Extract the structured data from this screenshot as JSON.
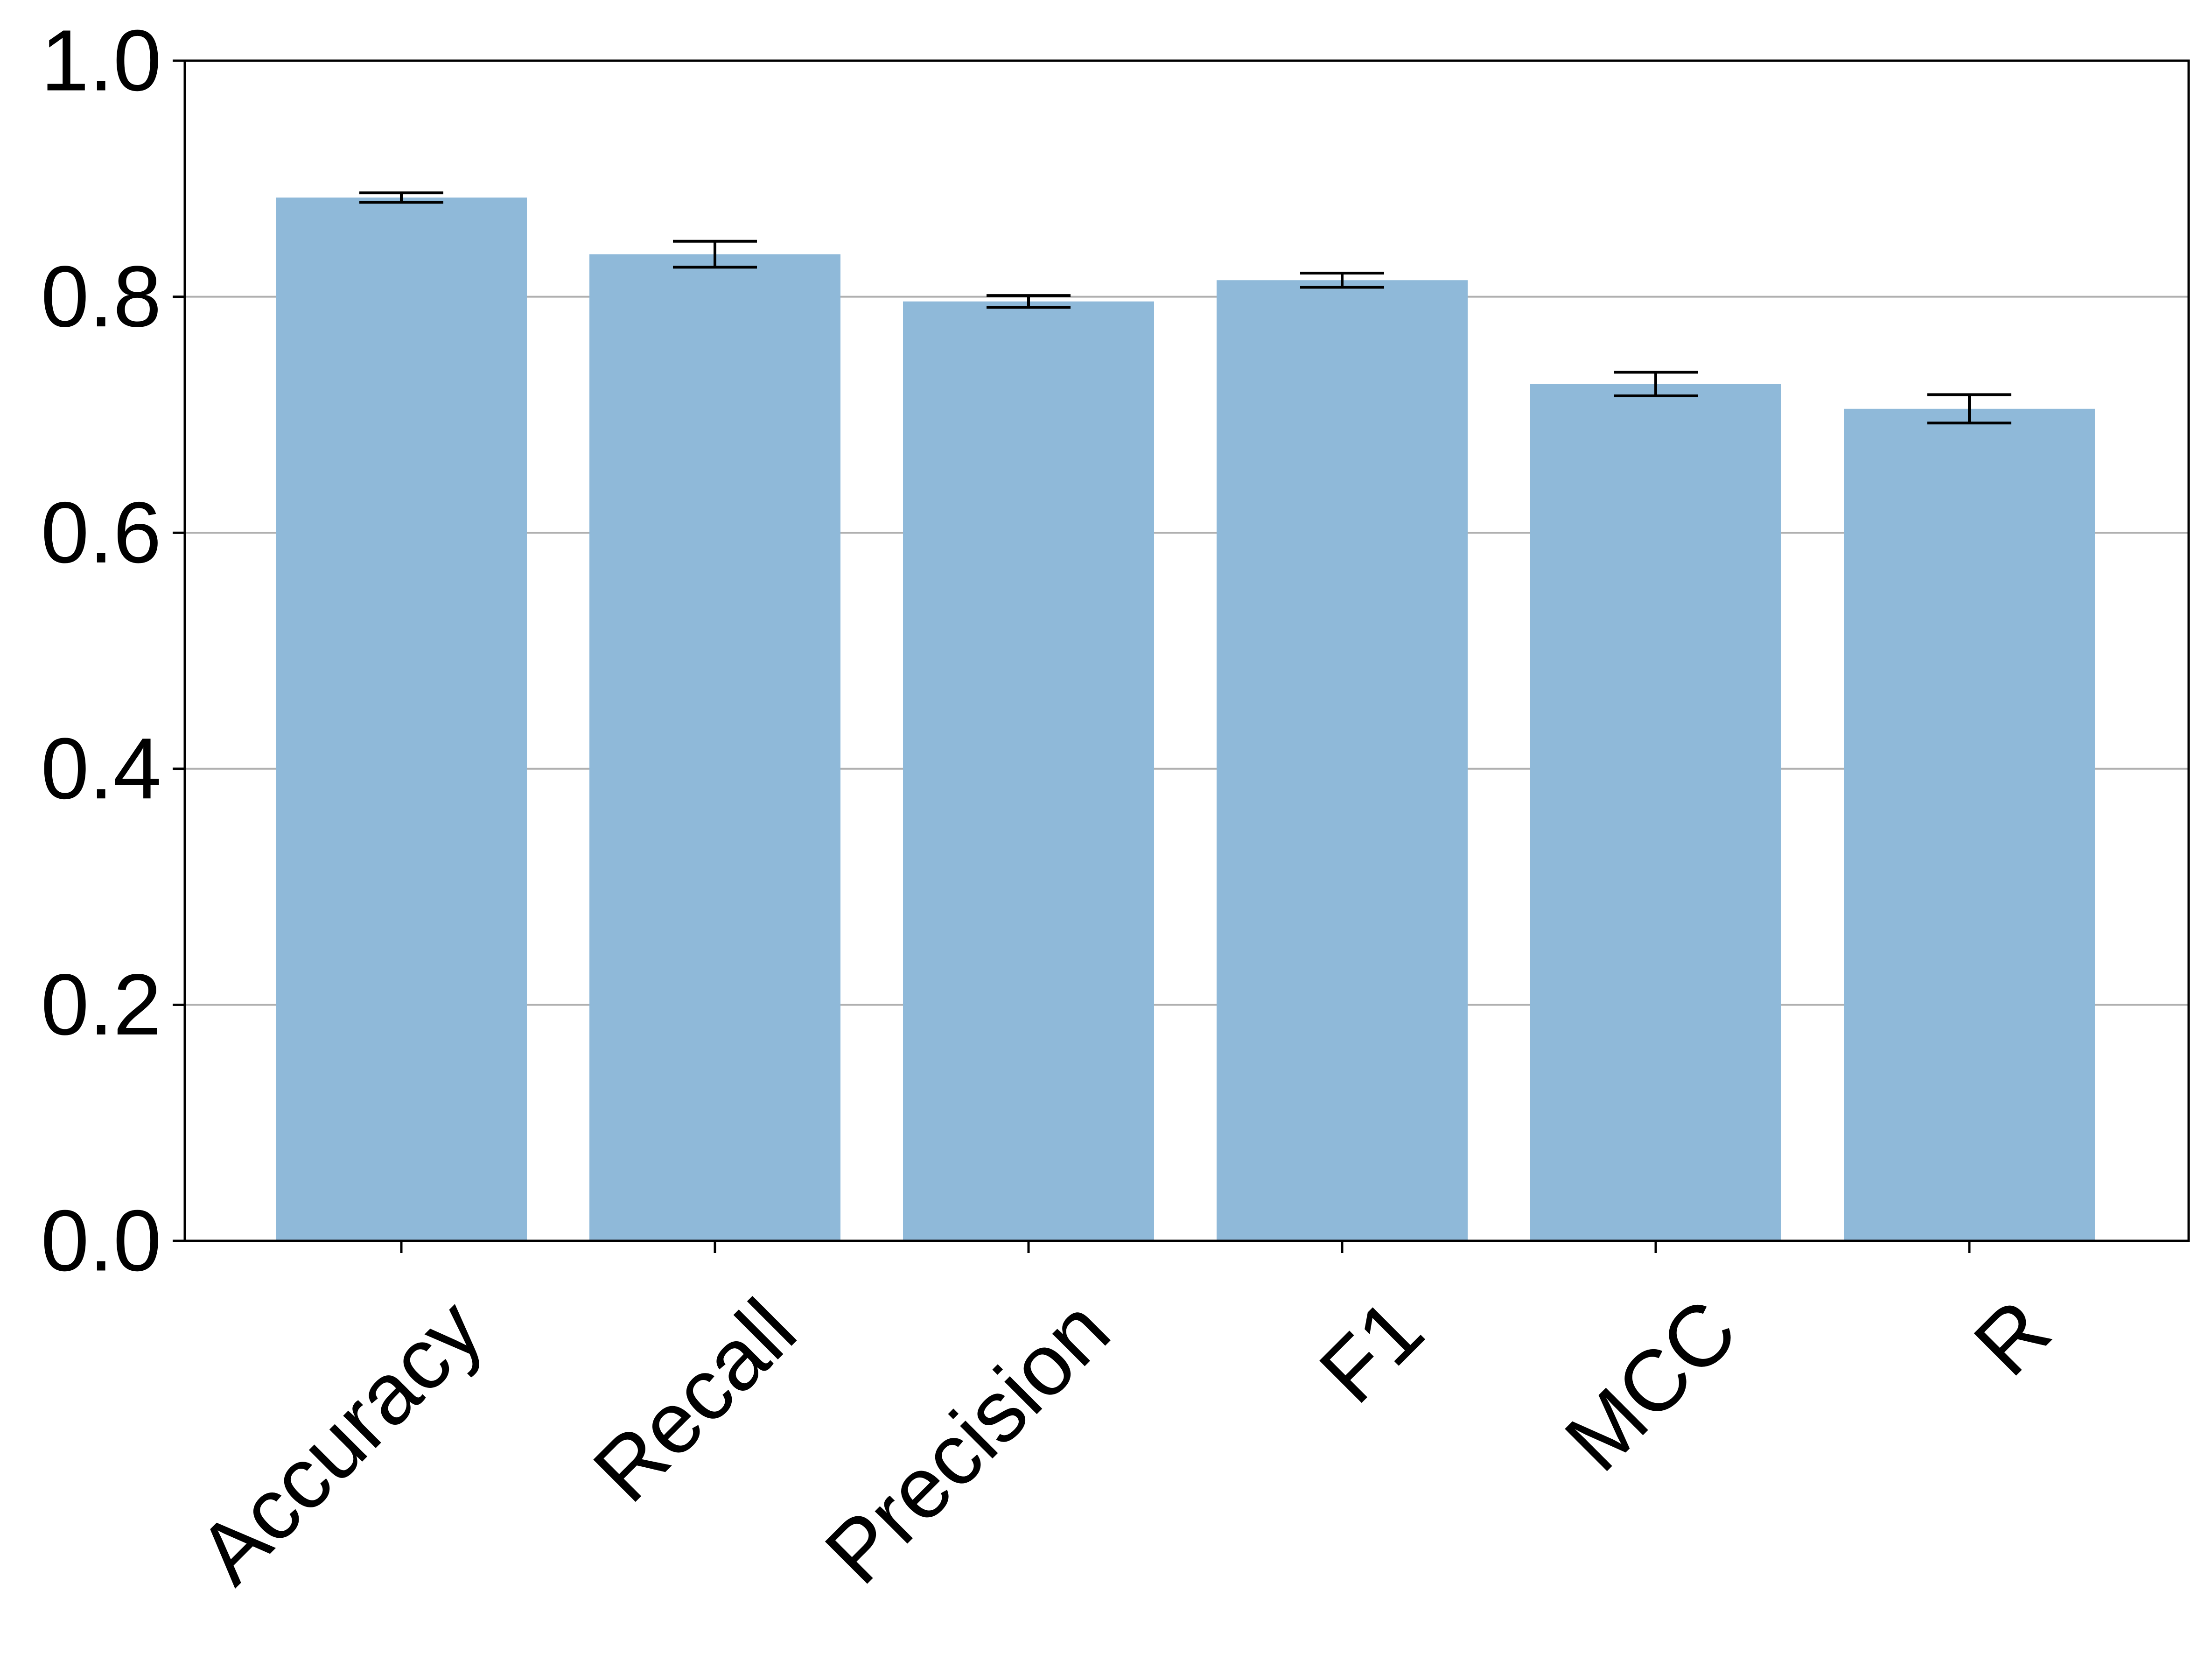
{
  "chart_data": {
    "type": "bar",
    "title": "",
    "xlabel": "",
    "ylabel": "",
    "categories": [
      "Accuracy",
      "Recall",
      "Precision",
      "F1",
      "MCC",
      "R"
    ],
    "values": [
      0.884,
      0.836,
      0.796,
      0.814,
      0.726,
      0.705
    ],
    "errors": [
      0.004,
      0.011,
      0.005,
      0.006,
      0.01,
      0.012
    ],
    "ylim": [
      0.0,
      1.0
    ],
    "yticks": [
      "0.0",
      "0.2",
      "0.4",
      "0.6",
      "0.8",
      "1.0"
    ],
    "ytick_values": [
      0.0,
      0.2,
      0.4,
      0.6,
      0.8,
      1.0
    ],
    "grid": "horizontal",
    "bar_color": "#8fb9d9",
    "error_color": "#000000",
    "grid_color": "#b0b0b0"
  }
}
